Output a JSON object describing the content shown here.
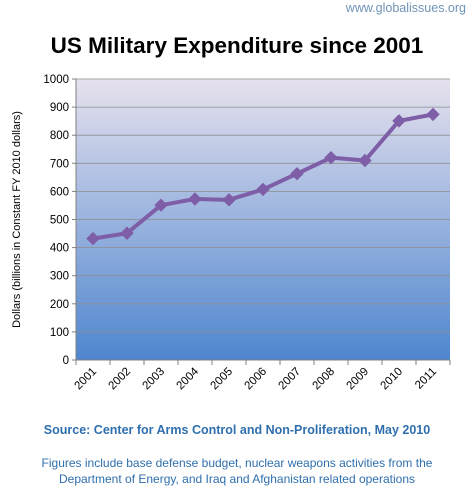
{
  "watermark": "www.globalissues.org",
  "source": "Source: Center for Arms Control and Non-Proliferation, May 2010",
  "notes": {
    "line1": "Figures include base defense budget, nuclear weapons activities from the",
    "line2": "Department of Energy, and Iraq and Afghanistan related operations"
  },
  "colors": {
    "series": "#7f5ea8",
    "plot_top": "#e6e1ee",
    "plot_bottom": "#4f86cf",
    "source_text": "#2f6fae",
    "watermark": "#6f93b8"
  },
  "chart_data": {
    "type": "line",
    "title": "US Military Expenditure since 2001",
    "ylabel": "Dollars (billions in Constant FY 2010 dollars)",
    "xlabel": "",
    "ylim": [
      0,
      1000
    ],
    "yticks": [
      0,
      100,
      200,
      300,
      400,
      500,
      600,
      700,
      800,
      900,
      1000
    ],
    "grid": true,
    "legend": "none",
    "categories": [
      "2001",
      "2002",
      "2003",
      "2004",
      "2005",
      "2006",
      "2007",
      "2008",
      "2009",
      "2010",
      "2011"
    ],
    "values": [
      432,
      451,
      551,
      573,
      570,
      607,
      663,
      720,
      710,
      851,
      874
    ]
  }
}
